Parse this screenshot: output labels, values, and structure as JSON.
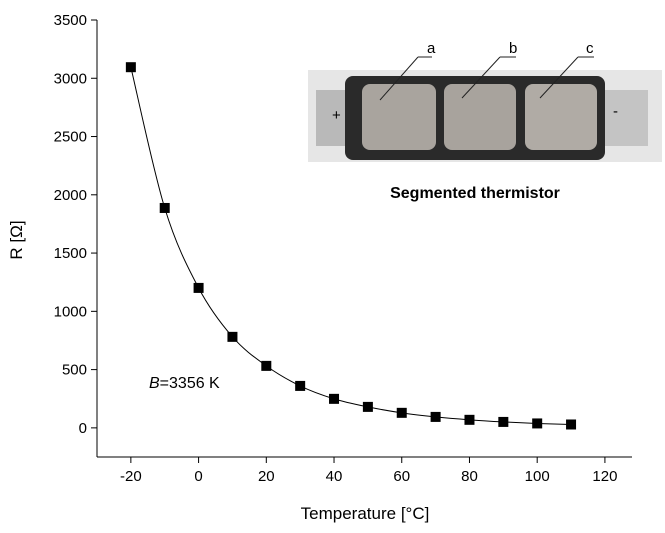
{
  "chart_data": {
    "type": "line",
    "x_label": "Temperature [°C]",
    "y_label": "R [Ω]",
    "x": [
      -20,
      -10,
      0,
      10,
      20,
      30,
      40,
      50,
      60,
      70,
      80,
      90,
      100,
      110
    ],
    "series": [
      {
        "color": "#000000",
        "values": [
          3095,
          1887,
          1201,
          781,
          532,
          360,
          249,
          180,
          129,
          94,
          69,
          51,
          38,
          29
        ]
      }
    ],
    "xlim": [
      -30,
      128
    ],
    "xticks": [
      -20,
      0,
      20,
      40,
      60,
      80,
      100,
      120
    ],
    "ylim": [
      -250,
      3500
    ],
    "yticks": [
      0,
      500,
      1000,
      1500,
      2000,
      2500,
      3000,
      3500
    ],
    "annotation": {
      "symbol": "B",
      "text": "=3356 K"
    },
    "inset": {
      "caption": "Segmented thermistor",
      "segments": [
        "a",
        "b",
        "c"
      ],
      "plus": "+",
      "minus": "-"
    }
  }
}
